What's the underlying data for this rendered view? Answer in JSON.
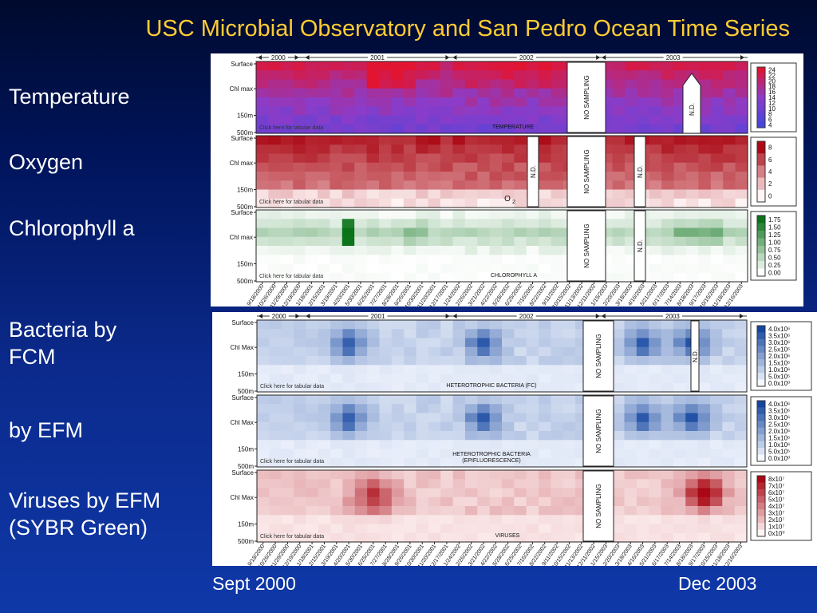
{
  "slide": {
    "title": "USC Microbial Observatory and San Pedro Ocean Time Series",
    "labels": [
      "Temperature",
      "Oxygen",
      "Chlorophyll a",
      "Bacteria by FCM",
      "by EFM",
      "Viruses by EFM (SYBR Green)"
    ],
    "x_start": "Sept 2000",
    "x_end": "Dec 2003"
  },
  "colors": {
    "red": "#cc1020",
    "blue": "#1c55a8",
    "green": "#0a7a18",
    "purple": "#5a40c8",
    "title": "#ffcc33"
  },
  "chart_data": {
    "type": "heatmap",
    "link_text": "Click here for tabular data",
    "no_sampling": "NO SAMPLING",
    "nd": "N.D.",
    "figures": [
      {
        "depth_labels": [
          "Surface",
          "Chl max",
          "150m",
          "500m"
        ],
        "years": [
          "2000",
          "2001",
          "2002",
          "2003"
        ],
        "dates": [
          "9/18/2000",
          "10/26/2000",
          "11/29/2000",
          "12/19/2000",
          "1/18/2001",
          "2/15/2001",
          "3/19/2001",
          "4/20/2001",
          "5/30/2001",
          "6/25/2001",
          "7/27/2001",
          "8/28/2001",
          "9/26/2001",
          "10/30/2001",
          "11/20/2001",
          "12/17/2001",
          "1/24/2002",
          "2/26/2002",
          "3/21/2002",
          "4/22/2002",
          "5/28/2002",
          "6/25/2002",
          "7/16/2002",
          "8/22/2002",
          "9/11/2002",
          "10/15/2002",
          "11/13/2002",
          "12/11/2002",
          "1/15/2003",
          "2/20/2003",
          "3/18/2003",
          "4/16/2003",
          "5/21/2003",
          "6/17/2003",
          "7/14/2003",
          "8/18/2003",
          "9/17/2003",
          "10/15/2003",
          "11/18/2003",
          "12/16/2003"
        ],
        "panels": [
          {
            "name": "TEMPERATURE",
            "colormap": "temperature",
            "legend": [
              "24",
              "22",
              "20",
              "18",
              "16",
              "14",
              "12",
              "10",
              "8",
              "6",
              "4"
            ]
          },
          {
            "name": "O2",
            "colormap": "red",
            "legend": [
              "8",
              "6",
              "4",
              "2",
              "0"
            ]
          },
          {
            "name": "CHLOROPHYLL A",
            "colormap": "green",
            "legend": [
              "1.75",
              "1.50",
              "1.25",
              "1.00",
              "0.75",
              "0.50",
              "0.25",
              "0.00"
            ]
          }
        ]
      },
      {
        "depth_labels": [
          "Surface",
          "Chl Max",
          "150m",
          "500m"
        ],
        "years": [
          "2000",
          "2001",
          "2002",
          "2003"
        ],
        "dates": [
          "9/18/2000",
          "10/26/2000",
          "11/29/2000",
          "12/19/2000",
          "1/18/2001",
          "2/15/2001",
          "3/19/2001",
          "4/20/2001",
          "5/30/2001",
          "6/25/2001",
          "7/27/2001",
          "8/28/2001",
          "9/26/2001",
          "10/30/2001",
          "11/20/2001",
          "12/17/2001",
          "1/24/2002",
          "2/26/2002",
          "3/21/2002",
          "4/22/2002",
          "5/28/2002",
          "6/25/2002",
          "7/16/2002",
          "8/22/2002",
          "9/11/2002",
          "10/15/2002",
          "11/13/2002",
          "12/11/2002",
          "1/15/2003",
          "2/20/2003",
          "3/18/2003",
          "4/16/2003",
          "5/21/2003",
          "6/17/2003",
          "7/14/2003",
          "8/18/2003",
          "9/17/2003",
          "10/15/2003",
          "11/18/2003",
          "12/16/2003"
        ],
        "panels": [
          {
            "name": "HETEROTROPHIC BACTERIA (FC)",
            "colormap": "blue",
            "legend": [
              "4.0x10⁶",
              "3.5x10⁶",
              "3.0x10⁶",
              "2.5x10⁶",
              "2.0x10⁶",
              "1.5x10⁶",
              "1.0x10⁶",
              "5.0x10⁵",
              "0.0x10⁰"
            ]
          },
          {
            "name": "HETEROTROPHIC BACTERIA (EPIFLUORESCENCE)",
            "colormap": "blue",
            "legend": [
              "4.0x10⁶",
              "3.5x10⁶",
              "3.0x10⁶",
              "2.5x10⁶",
              "2.0x10⁶",
              "1.5x10⁶",
              "1.0x10⁶",
              "5.0x10⁵",
              "0.0x10⁰"
            ]
          },
          {
            "name": "VIRUSES",
            "colormap": "red",
            "legend": [
              "8x10⁷",
              "7x10⁷",
              "6x10⁷",
              "5x10⁷",
              "4x10⁷",
              "3x10⁷",
              "2x10⁷",
              "1x10⁷",
              "0x10⁰"
            ]
          }
        ]
      }
    ]
  }
}
